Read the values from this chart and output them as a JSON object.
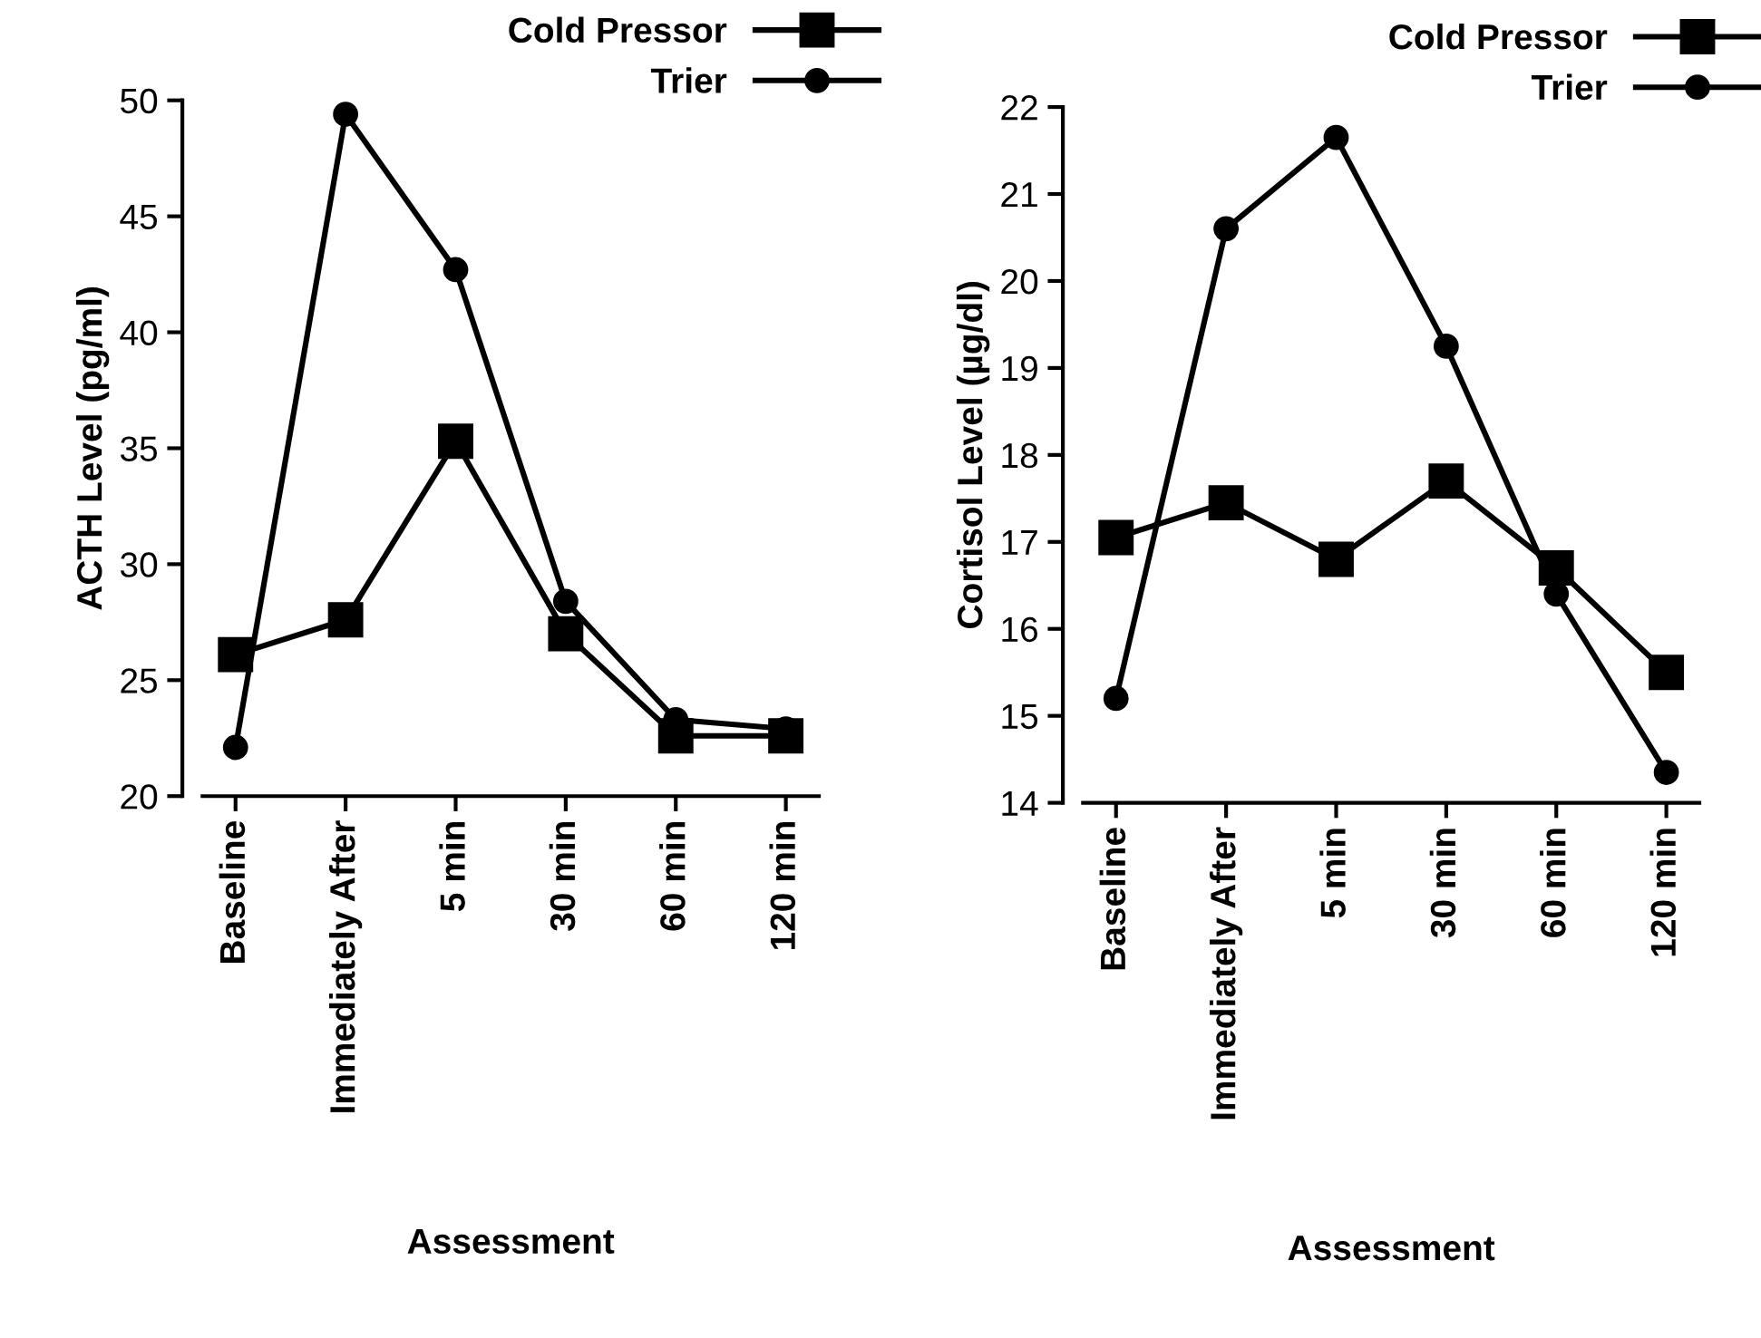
{
  "chart_data": [
    {
      "type": "line",
      "xlabel": "Assessment",
      "ylabel": "ACTH Level (pg/ml)",
      "categories": [
        "Baseline",
        "Immediately After",
        "5 min",
        "30 min",
        "60 min",
        "120 min"
      ],
      "ylim": [
        20,
        50
      ],
      "yticks": [
        20,
        25,
        30,
        35,
        40,
        45,
        50
      ],
      "legend": "top right",
      "grid": false,
      "series": [
        {
          "name": "Cold Pressor",
          "color": "#000000",
          "marker": "square",
          "values": [
            26.1,
            27.6,
            35.3,
            27.0,
            22.6,
            22.6
          ]
        },
        {
          "name": "Trier",
          "color": "#000000",
          "marker": "circle",
          "values": [
            22.1,
            49.4,
            42.7,
            28.4,
            23.3,
            22.9
          ]
        }
      ]
    },
    {
      "type": "line",
      "xlabel": "Assessment",
      "ylabel": "Cortisol Level (µg/dl)",
      "categories": [
        "Baseline",
        "Immediately After",
        "5 min",
        "30 min",
        "60 min",
        "120 min"
      ],
      "ylim": [
        14,
        22
      ],
      "yticks": [
        14,
        15,
        16,
        17,
        18,
        19,
        20,
        21,
        22
      ],
      "legend": "top right",
      "grid": false,
      "series": [
        {
          "name": "Cold Pressor",
          "color": "#000000",
          "marker": "square",
          "values": [
            17.05,
            17.45,
            16.8,
            17.7,
            16.7,
            15.5
          ]
        },
        {
          "name": "Trier",
          "color": "#000000",
          "marker": "circle",
          "values": [
            15.2,
            20.6,
            21.65,
            19.25,
            16.4,
            14.35
          ]
        }
      ]
    }
  ]
}
